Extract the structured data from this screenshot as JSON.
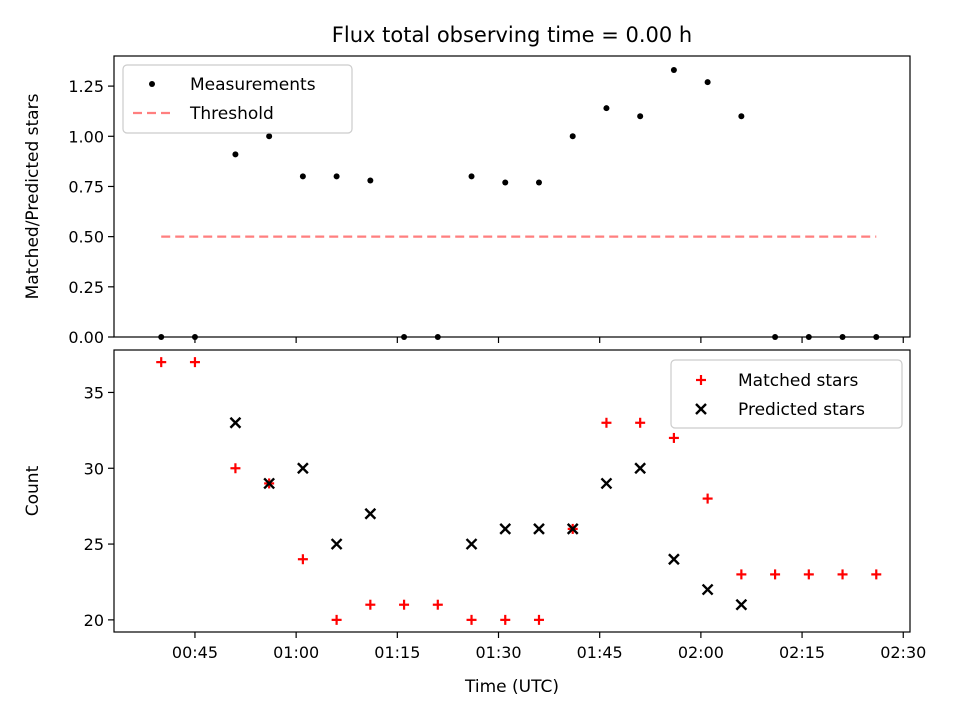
{
  "title": "Flux total observing time = 0.00 h",
  "colors": {
    "measurement": "#000000",
    "threshold": "#ff7f7f",
    "matched": "#ff0000",
    "predicted": "#000000"
  },
  "chart_data": [
    {
      "type": "scatter",
      "ylabel": "Matched/Predicted stars",
      "xlim": [
        "00:33",
        "02:31"
      ],
      "ylim": [
        0,
        1.4
      ],
      "yticks": [
        "0.00",
        "0.25",
        "0.50",
        "0.75",
        "1.00",
        "1.25"
      ],
      "legend": "top-left",
      "grid": false,
      "series": [
        {
          "name": "Measurements",
          "marker": "dot",
          "x": [
            "00:40",
            "00:45",
            "00:51",
            "00:56",
            "01:01",
            "01:06",
            "01:11",
            "01:16",
            "01:21",
            "01:26",
            "01:31",
            "01:36",
            "01:41",
            "01:46",
            "01:51",
            "01:56",
            "02:01",
            "02:06",
            "02:11",
            "02:16",
            "02:21",
            "02:26"
          ],
          "y": [
            0.0,
            0.0,
            0.91,
            1.0,
            0.8,
            0.8,
            0.78,
            0.0,
            0.0,
            0.8,
            0.77,
            0.77,
            1.0,
            1.14,
            1.1,
            1.33,
            1.27,
            1.1,
            0.0,
            0.0,
            0.0,
            0.0
          ]
        },
        {
          "name": "Threshold",
          "marker": "dashed-line",
          "x": [
            "00:40",
            "02:26"
          ],
          "y": [
            0.5,
            0.5
          ]
        }
      ]
    },
    {
      "type": "scatter",
      "xlabel": "Time (UTC)",
      "ylabel": "Count",
      "xlim": [
        "00:33",
        "02:31"
      ],
      "ylim": [
        19.2,
        37.8
      ],
      "yticks": [
        "20",
        "25",
        "30",
        "35"
      ],
      "xticks": [
        "00:45",
        "01:00",
        "01:15",
        "01:30",
        "01:45",
        "02:00",
        "02:15",
        "02:30"
      ],
      "legend": "top-right",
      "grid": false,
      "series": [
        {
          "name": "Matched stars",
          "marker": "plus",
          "x": [
            "00:40",
            "00:45",
            "00:51",
            "00:56",
            "01:01",
            "01:06",
            "01:11",
            "01:16",
            "01:21",
            "01:26",
            "01:31",
            "01:36",
            "01:41",
            "01:46",
            "01:51",
            "01:56",
            "02:01",
            "02:06",
            "02:11",
            "02:16",
            "02:21",
            "02:26"
          ],
          "y": [
            37,
            37,
            30,
            29,
            24,
            20,
            21,
            21,
            21,
            20,
            20,
            20,
            26,
            33,
            33,
            32,
            28,
            23,
            23,
            23,
            23,
            23
          ]
        },
        {
          "name": "Predicted stars",
          "marker": "x",
          "x": [
            "00:51",
            "00:56",
            "01:01",
            "01:06",
            "01:11",
            "01:26",
            "01:31",
            "01:36",
            "01:41",
            "01:46",
            "01:51",
            "01:56",
            "02:01",
            "02:06"
          ],
          "y": [
            33,
            29,
            30,
            25,
            27,
            25,
            26,
            26,
            26,
            29,
            30,
            24,
            22,
            21
          ]
        }
      ]
    }
  ]
}
